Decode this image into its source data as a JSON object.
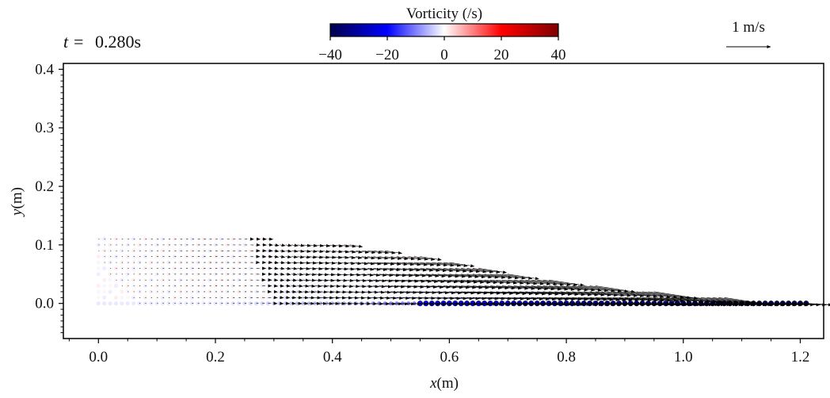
{
  "chart_data": {
    "type": "scatter",
    "title": "t = 0.280s",
    "title_parts": {
      "symbol": "t =",
      "value": "0.280s"
    },
    "xlabel": {
      "symbol": "x",
      "unit": "(m)"
    },
    "ylabel": {
      "symbol": "y",
      "unit": "(m)"
    },
    "xlim": [
      -0.06,
      1.24
    ],
    "ylim": [
      -0.06,
      0.41
    ],
    "xticks": [
      0.0,
      0.2,
      0.4,
      0.6,
      0.8,
      1.0,
      1.2
    ],
    "xtick_labels": [
      "0.0",
      "0.2",
      "0.4",
      "0.6",
      "0.8",
      "1.0",
      "1.2"
    ],
    "yticks": [
      0.0,
      0.1,
      0.2,
      0.3,
      0.4
    ],
    "ytick_labels": [
      "0.0",
      "0.1",
      "0.2",
      "0.3",
      "0.4"
    ],
    "grid": false,
    "colorbar": {
      "label": "Vorticity (/s)",
      "range": [
        -40,
        40
      ],
      "ticks": [
        -40,
        -20,
        0,
        20,
        40
      ],
      "tick_labels": [
        "−40",
        "−20",
        "0",
        "20",
        "40"
      ],
      "colormap": "seismic",
      "colors": [
        "#00004c",
        "#0000ff",
        "#ffffff",
        "#ff0000",
        "#7f0000"
      ],
      "placement": "top-center"
    },
    "velocity_scale": {
      "label": "1 m/s",
      "magnitude": 1.0,
      "placement": "top-right"
    },
    "flow": {
      "description_of_depiction": "dam-break particle field: arrows show velocity, particle fill shows vorticity",
      "water_column_x": [
        0.0,
        0.25
      ],
      "water_column_top_y": 0.115,
      "front_x": 1.21,
      "surface_profile": [
        {
          "x": 0.0,
          "y": 0.115
        },
        {
          "x": 0.25,
          "y": 0.112
        },
        {
          "x": 0.4,
          "y": 0.105
        },
        {
          "x": 0.55,
          "y": 0.08
        },
        {
          "x": 0.7,
          "y": 0.05
        },
        {
          "x": 0.85,
          "y": 0.03
        },
        {
          "x": 1.0,
          "y": 0.015
        },
        {
          "x": 1.21,
          "y": 0.0
        }
      ],
      "speed_profile": [
        {
          "x": 0.0,
          "speed": 0.02
        },
        {
          "x": 0.25,
          "speed": 0.06
        },
        {
          "x": 0.4,
          "speed": 0.25
        },
        {
          "x": 0.6,
          "speed": 0.6
        },
        {
          "x": 0.8,
          "speed": 0.9
        },
        {
          "x": 1.0,
          "speed": 1.1
        },
        {
          "x": 1.21,
          "speed": 1.2
        }
      ],
      "bottom_vorticity_profile": [
        {
          "x": 0.2,
          "w": -3
        },
        {
          "x": 0.4,
          "w": -10
        },
        {
          "x": 0.6,
          "w": -22
        },
        {
          "x": 0.8,
          "w": -32
        },
        {
          "x": 1.0,
          "w": -38
        },
        {
          "x": 1.1,
          "w": -40
        }
      ]
    }
  }
}
